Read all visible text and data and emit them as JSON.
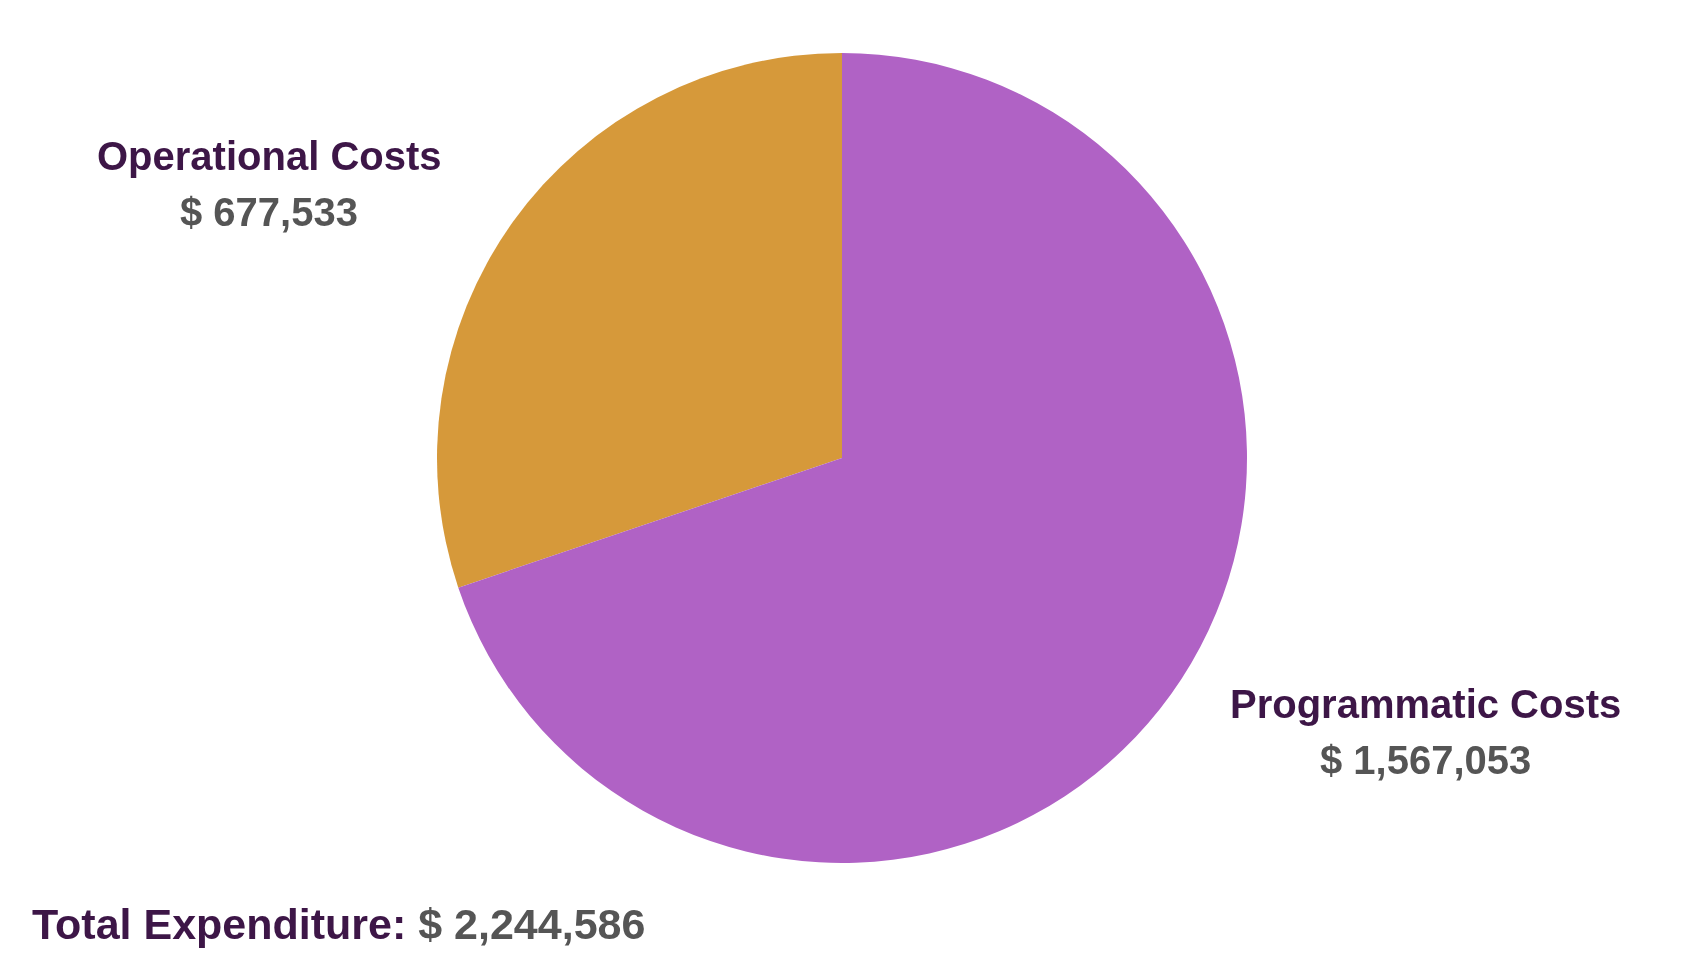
{
  "chart_data": {
    "type": "pie",
    "categories": [
      "Operational Costs",
      "Programmatic Costs"
    ],
    "values": [
      677533,
      1567053
    ],
    "colors": [
      "#d6993a",
      "#b062c5"
    ],
    "value_labels": [
      "$ 677,533",
      "$ 1,567,053"
    ],
    "annotations": [
      "Total Expenditure:",
      "$ 2,244,586"
    ]
  }
}
